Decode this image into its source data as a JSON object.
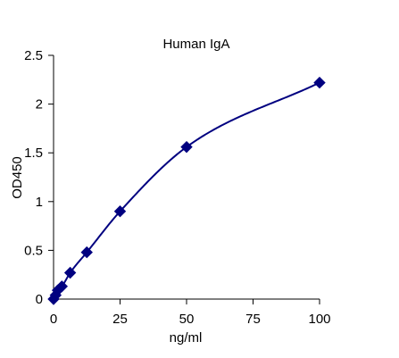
{
  "chart_data": {
    "type": "scatter",
    "title": "Human IgA",
    "xlabel": "ng/ml",
    "ylabel": "OD450",
    "xlim": [
      0,
      100
    ],
    "ylim": [
      0,
      2.5
    ],
    "x_ticks": [
      0,
      25,
      50,
      75,
      100
    ],
    "y_ticks": [
      0,
      0.5,
      1,
      1.5,
      2,
      2.5
    ],
    "x_tick_labels": [
      "0",
      "25",
      "50",
      "75",
      "100"
    ],
    "y_tick_labels": [
      "0",
      "0.5",
      "1",
      "1.5",
      "2",
      "2.5"
    ],
    "grid": false,
    "legend": "none",
    "series": [
      {
        "marker": "diamond",
        "fit_line": true,
        "x": [
          0,
          0.78,
          1.56,
          3.125,
          6.25,
          12.5,
          25,
          50,
          100
        ],
        "y": [
          0.0,
          0.04,
          0.09,
          0.13,
          0.27,
          0.48,
          0.9,
          1.56,
          2.22
        ]
      }
    ],
    "colors": {
      "series": "#000080",
      "axis": "#000000"
    }
  }
}
